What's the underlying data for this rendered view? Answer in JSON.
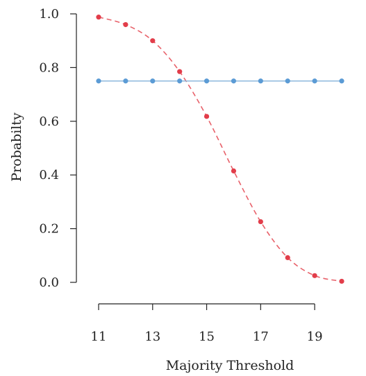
{
  "chart_data": {
    "type": "line",
    "xlabel": "Majority Threshold",
    "ylabel": "Probabilty",
    "xlim": [
      11,
      20
    ],
    "ylim": [
      0,
      1
    ],
    "x_ticks": [
      11,
      13,
      15,
      17,
      19
    ],
    "x_tick_labels": [
      "11",
      "13",
      "15",
      "17",
      "19"
    ],
    "y_ticks": [
      0,
      0.2,
      0.4,
      0.6,
      0.8,
      1.0
    ],
    "y_tick_labels": [
      "0.0",
      "0.2",
      "0.4",
      "0.6",
      "0.8",
      "1.0"
    ],
    "grid": false,
    "series": [
      {
        "line_style": "dashed",
        "color": "#e8616a",
        "marker_color": "#e23d4a",
        "x": [
          11,
          12,
          13,
          14,
          15,
          16,
          17,
          18,
          19,
          20
        ],
        "values": [
          0.988,
          0.96,
          0.9,
          0.785,
          0.618,
          0.415,
          0.226,
          0.092,
          0.025,
          0.004
        ]
      },
      {
        "line_style": "solid",
        "color": "#8cb8dc",
        "marker_color": "#5b9bd5",
        "x": [
          11,
          12,
          13,
          14,
          15,
          16,
          17,
          18,
          19,
          20
        ],
        "values": [
          0.75,
          0.75,
          0.75,
          0.75,
          0.75,
          0.75,
          0.75,
          0.75,
          0.75,
          0.75
        ]
      }
    ]
  }
}
